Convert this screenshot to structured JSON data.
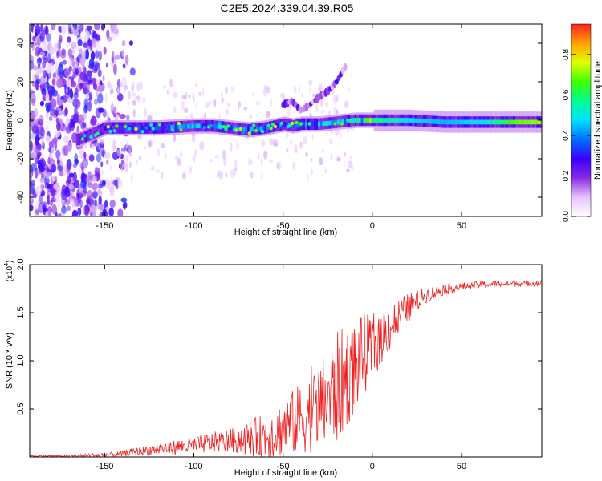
{
  "title": "C2E5.2024.339.04.39.R05",
  "chart_data": [
    {
      "type": "heatmap",
      "title": "C2E5.2024.339.04.39.R05",
      "xlabel": "Height of straight line (km)",
      "ylabel": "Frequency (Hz)",
      "xlim": [
        -192,
        95
      ],
      "ylim": [
        -50,
        50
      ],
      "xticks": [
        -150,
        -100,
        -50,
        0,
        50
      ],
      "yticks": [
        -40,
        -20,
        0,
        20,
        40
      ],
      "colorbar": {
        "label": "Normalized spectral amplitude",
        "range": [
          0.0,
          0.95
        ],
        "ticks": [
          0.0,
          0.2,
          0.4,
          0.6,
          0.8
        ],
        "colors": [
          "#ffffff",
          "#e6c3ff",
          "#8a2be2",
          "#3a00ff",
          "#0070ff",
          "#00e0ff",
          "#00ff90",
          "#40ff00",
          "#e0ff00",
          "#ffa000",
          "#ff2020"
        ]
      },
      "ridge_center_line": {
        "x": [
          -165,
          -150,
          -120,
          -100,
          -90,
          -80,
          -70,
          -60,
          -50,
          -45,
          -40,
          -30,
          -20,
          -10,
          0,
          10,
          20,
          40,
          60,
          80,
          95
        ],
        "y": [
          -10,
          -4,
          -4,
          -3,
          -3,
          -4,
          -5,
          -4,
          -2,
          -3,
          -2,
          -2,
          -1,
          0,
          0,
          0,
          0,
          -1,
          -1,
          -1,
          -1
        ]
      },
      "ridge_peak_amplitude": {
        "x": [
          -160,
          -140,
          -120,
          -100,
          -80,
          -60,
          -40,
          -20,
          0,
          20,
          40,
          60,
          80,
          95
        ],
        "values": [
          0.3,
          0.35,
          0.4,
          0.5,
          0.5,
          0.45,
          0.45,
          0.55,
          0.75,
          0.6,
          0.55,
          0.6,
          0.85,
          0.9
        ]
      },
      "noise_region_x": [
        -192,
        -145
      ],
      "upper_branch": {
        "x": [
          -50,
          -45,
          -40,
          -35,
          -30,
          -25,
          -20,
          -15
        ],
        "y": [
          8,
          10,
          5,
          8,
          12,
          15,
          20,
          28
        ]
      }
    },
    {
      "type": "line",
      "title": "",
      "xlabel": "Height of straight line (km)",
      "ylabel": "SNR (10 * v/v)",
      "multiplier_label": "(x10",
      "multiplier_exp": "4",
      "multiplier_close": ")",
      "xlim": [
        -192,
        95
      ],
      "ylim": [
        0,
        2.0
      ],
      "xticks": [
        -150,
        -100,
        -50,
        0,
        50
      ],
      "yticks": [
        0.5,
        1.0,
        1.5,
        2.0
      ],
      "ytick_labels": [
        "0.5",
        "1.0",
        "1.5",
        "2.0"
      ],
      "series_color": "#ee2222",
      "baseline_x": [
        -192,
        -170,
        -150,
        -140,
        -135,
        -130,
        -120,
        -110,
        -100,
        -90,
        -80,
        -70,
        -60,
        -55,
        -50,
        -45,
        -40,
        -35,
        -30,
        -25,
        -20,
        -15,
        -10,
        -5,
        0,
        5,
        10,
        15,
        20,
        25,
        30,
        40,
        50,
        60,
        70,
        80,
        95
      ],
      "baseline_y": [
        0.01,
        0.01,
        0.02,
        0.03,
        0.05,
        0.06,
        0.08,
        0.1,
        0.12,
        0.15,
        0.17,
        0.19,
        0.22,
        0.25,
        0.3,
        0.35,
        0.4,
        0.45,
        0.52,
        0.6,
        0.7,
        0.82,
        0.95,
        1.05,
        1.15,
        1.25,
        1.35,
        1.45,
        1.55,
        1.62,
        1.68,
        1.74,
        1.77,
        1.79,
        1.8,
        1.8,
        1.81
      ],
      "noise_amplitude_x": [
        -192,
        -140,
        -110,
        -80,
        -50,
        -30,
        -20,
        -10,
        0,
        20,
        30,
        50,
        95
      ],
      "noise_amplitude_y": [
        0.005,
        0.03,
        0.08,
        0.12,
        0.3,
        0.45,
        0.6,
        0.5,
        0.35,
        0.15,
        0.08,
        0.04,
        0.03
      ]
    }
  ]
}
